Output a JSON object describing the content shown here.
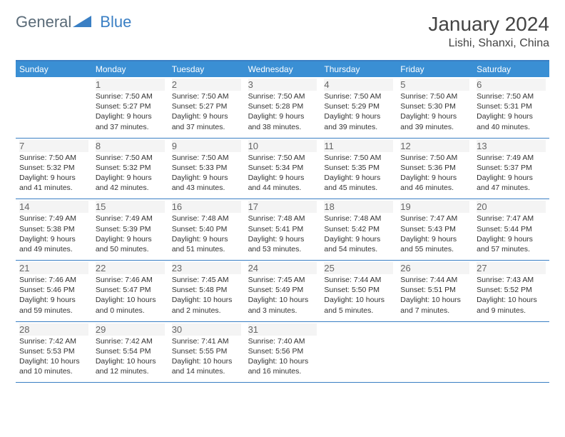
{
  "logo": {
    "part1": "General",
    "part2": "Blue"
  },
  "title": "January 2024",
  "location": "Lishi, Shanxi, China",
  "colors": {
    "accent": "#3a7fc4",
    "header_bg": "#3a8fd4",
    "header_text": "#ffffff",
    "text": "#333333",
    "daynum": "#666666",
    "daynum_bg": "#f4f4f4",
    "logo_gray": "#5a6b78",
    "logo_blue": "#3a7fc4",
    "background": "#ffffff"
  },
  "typography": {
    "title_fontsize": 28,
    "location_fontsize": 16,
    "dayheader_fontsize": 12,
    "daynum_fontsize": 13,
    "dayline_fontsize": 10.5
  },
  "layout": {
    "columns": 7,
    "rows": 5,
    "first_day_column": 1
  },
  "day_headers": [
    "Sunday",
    "Monday",
    "Tuesday",
    "Wednesday",
    "Thursday",
    "Friday",
    "Saturday"
  ],
  "days": [
    {
      "n": "1",
      "sunrise": "7:50 AM",
      "sunset": "5:27 PM",
      "daylight": "9 hours and 37 minutes."
    },
    {
      "n": "2",
      "sunrise": "7:50 AM",
      "sunset": "5:27 PM",
      "daylight": "9 hours and 37 minutes."
    },
    {
      "n": "3",
      "sunrise": "7:50 AM",
      "sunset": "5:28 PM",
      "daylight": "9 hours and 38 minutes."
    },
    {
      "n": "4",
      "sunrise": "7:50 AM",
      "sunset": "5:29 PM",
      "daylight": "9 hours and 39 minutes."
    },
    {
      "n": "5",
      "sunrise": "7:50 AM",
      "sunset": "5:30 PM",
      "daylight": "9 hours and 39 minutes."
    },
    {
      "n": "6",
      "sunrise": "7:50 AM",
      "sunset": "5:31 PM",
      "daylight": "9 hours and 40 minutes."
    },
    {
      "n": "7",
      "sunrise": "7:50 AM",
      "sunset": "5:32 PM",
      "daylight": "9 hours and 41 minutes."
    },
    {
      "n": "8",
      "sunrise": "7:50 AM",
      "sunset": "5:32 PM",
      "daylight": "9 hours and 42 minutes."
    },
    {
      "n": "9",
      "sunrise": "7:50 AM",
      "sunset": "5:33 PM",
      "daylight": "9 hours and 43 minutes."
    },
    {
      "n": "10",
      "sunrise": "7:50 AM",
      "sunset": "5:34 PM",
      "daylight": "9 hours and 44 minutes."
    },
    {
      "n": "11",
      "sunrise": "7:50 AM",
      "sunset": "5:35 PM",
      "daylight": "9 hours and 45 minutes."
    },
    {
      "n": "12",
      "sunrise": "7:50 AM",
      "sunset": "5:36 PM",
      "daylight": "9 hours and 46 minutes."
    },
    {
      "n": "13",
      "sunrise": "7:49 AM",
      "sunset": "5:37 PM",
      "daylight": "9 hours and 47 minutes."
    },
    {
      "n": "14",
      "sunrise": "7:49 AM",
      "sunset": "5:38 PM",
      "daylight": "9 hours and 49 minutes."
    },
    {
      "n": "15",
      "sunrise": "7:49 AM",
      "sunset": "5:39 PM",
      "daylight": "9 hours and 50 minutes."
    },
    {
      "n": "16",
      "sunrise": "7:48 AM",
      "sunset": "5:40 PM",
      "daylight": "9 hours and 51 minutes."
    },
    {
      "n": "17",
      "sunrise": "7:48 AM",
      "sunset": "5:41 PM",
      "daylight": "9 hours and 53 minutes."
    },
    {
      "n": "18",
      "sunrise": "7:48 AM",
      "sunset": "5:42 PM",
      "daylight": "9 hours and 54 minutes."
    },
    {
      "n": "19",
      "sunrise": "7:47 AM",
      "sunset": "5:43 PM",
      "daylight": "9 hours and 55 minutes."
    },
    {
      "n": "20",
      "sunrise": "7:47 AM",
      "sunset": "5:44 PM",
      "daylight": "9 hours and 57 minutes."
    },
    {
      "n": "21",
      "sunrise": "7:46 AM",
      "sunset": "5:46 PM",
      "daylight": "9 hours and 59 minutes."
    },
    {
      "n": "22",
      "sunrise": "7:46 AM",
      "sunset": "5:47 PM",
      "daylight": "10 hours and 0 minutes."
    },
    {
      "n": "23",
      "sunrise": "7:45 AM",
      "sunset": "5:48 PM",
      "daylight": "10 hours and 2 minutes."
    },
    {
      "n": "24",
      "sunrise": "7:45 AM",
      "sunset": "5:49 PM",
      "daylight": "10 hours and 3 minutes."
    },
    {
      "n": "25",
      "sunrise": "7:44 AM",
      "sunset": "5:50 PM",
      "daylight": "10 hours and 5 minutes."
    },
    {
      "n": "26",
      "sunrise": "7:44 AM",
      "sunset": "5:51 PM",
      "daylight": "10 hours and 7 minutes."
    },
    {
      "n": "27",
      "sunrise": "7:43 AM",
      "sunset": "5:52 PM",
      "daylight": "10 hours and 9 minutes."
    },
    {
      "n": "28",
      "sunrise": "7:42 AM",
      "sunset": "5:53 PM",
      "daylight": "10 hours and 10 minutes."
    },
    {
      "n": "29",
      "sunrise": "7:42 AM",
      "sunset": "5:54 PM",
      "daylight": "10 hours and 12 minutes."
    },
    {
      "n": "30",
      "sunrise": "7:41 AM",
      "sunset": "5:55 PM",
      "daylight": "10 hours and 14 minutes."
    },
    {
      "n": "31",
      "sunrise": "7:40 AM",
      "sunset": "5:56 PM",
      "daylight": "10 hours and 16 minutes."
    }
  ],
  "labels": {
    "sunrise": "Sunrise: ",
    "sunset": "Sunset: ",
    "daylight": "Daylight: "
  }
}
